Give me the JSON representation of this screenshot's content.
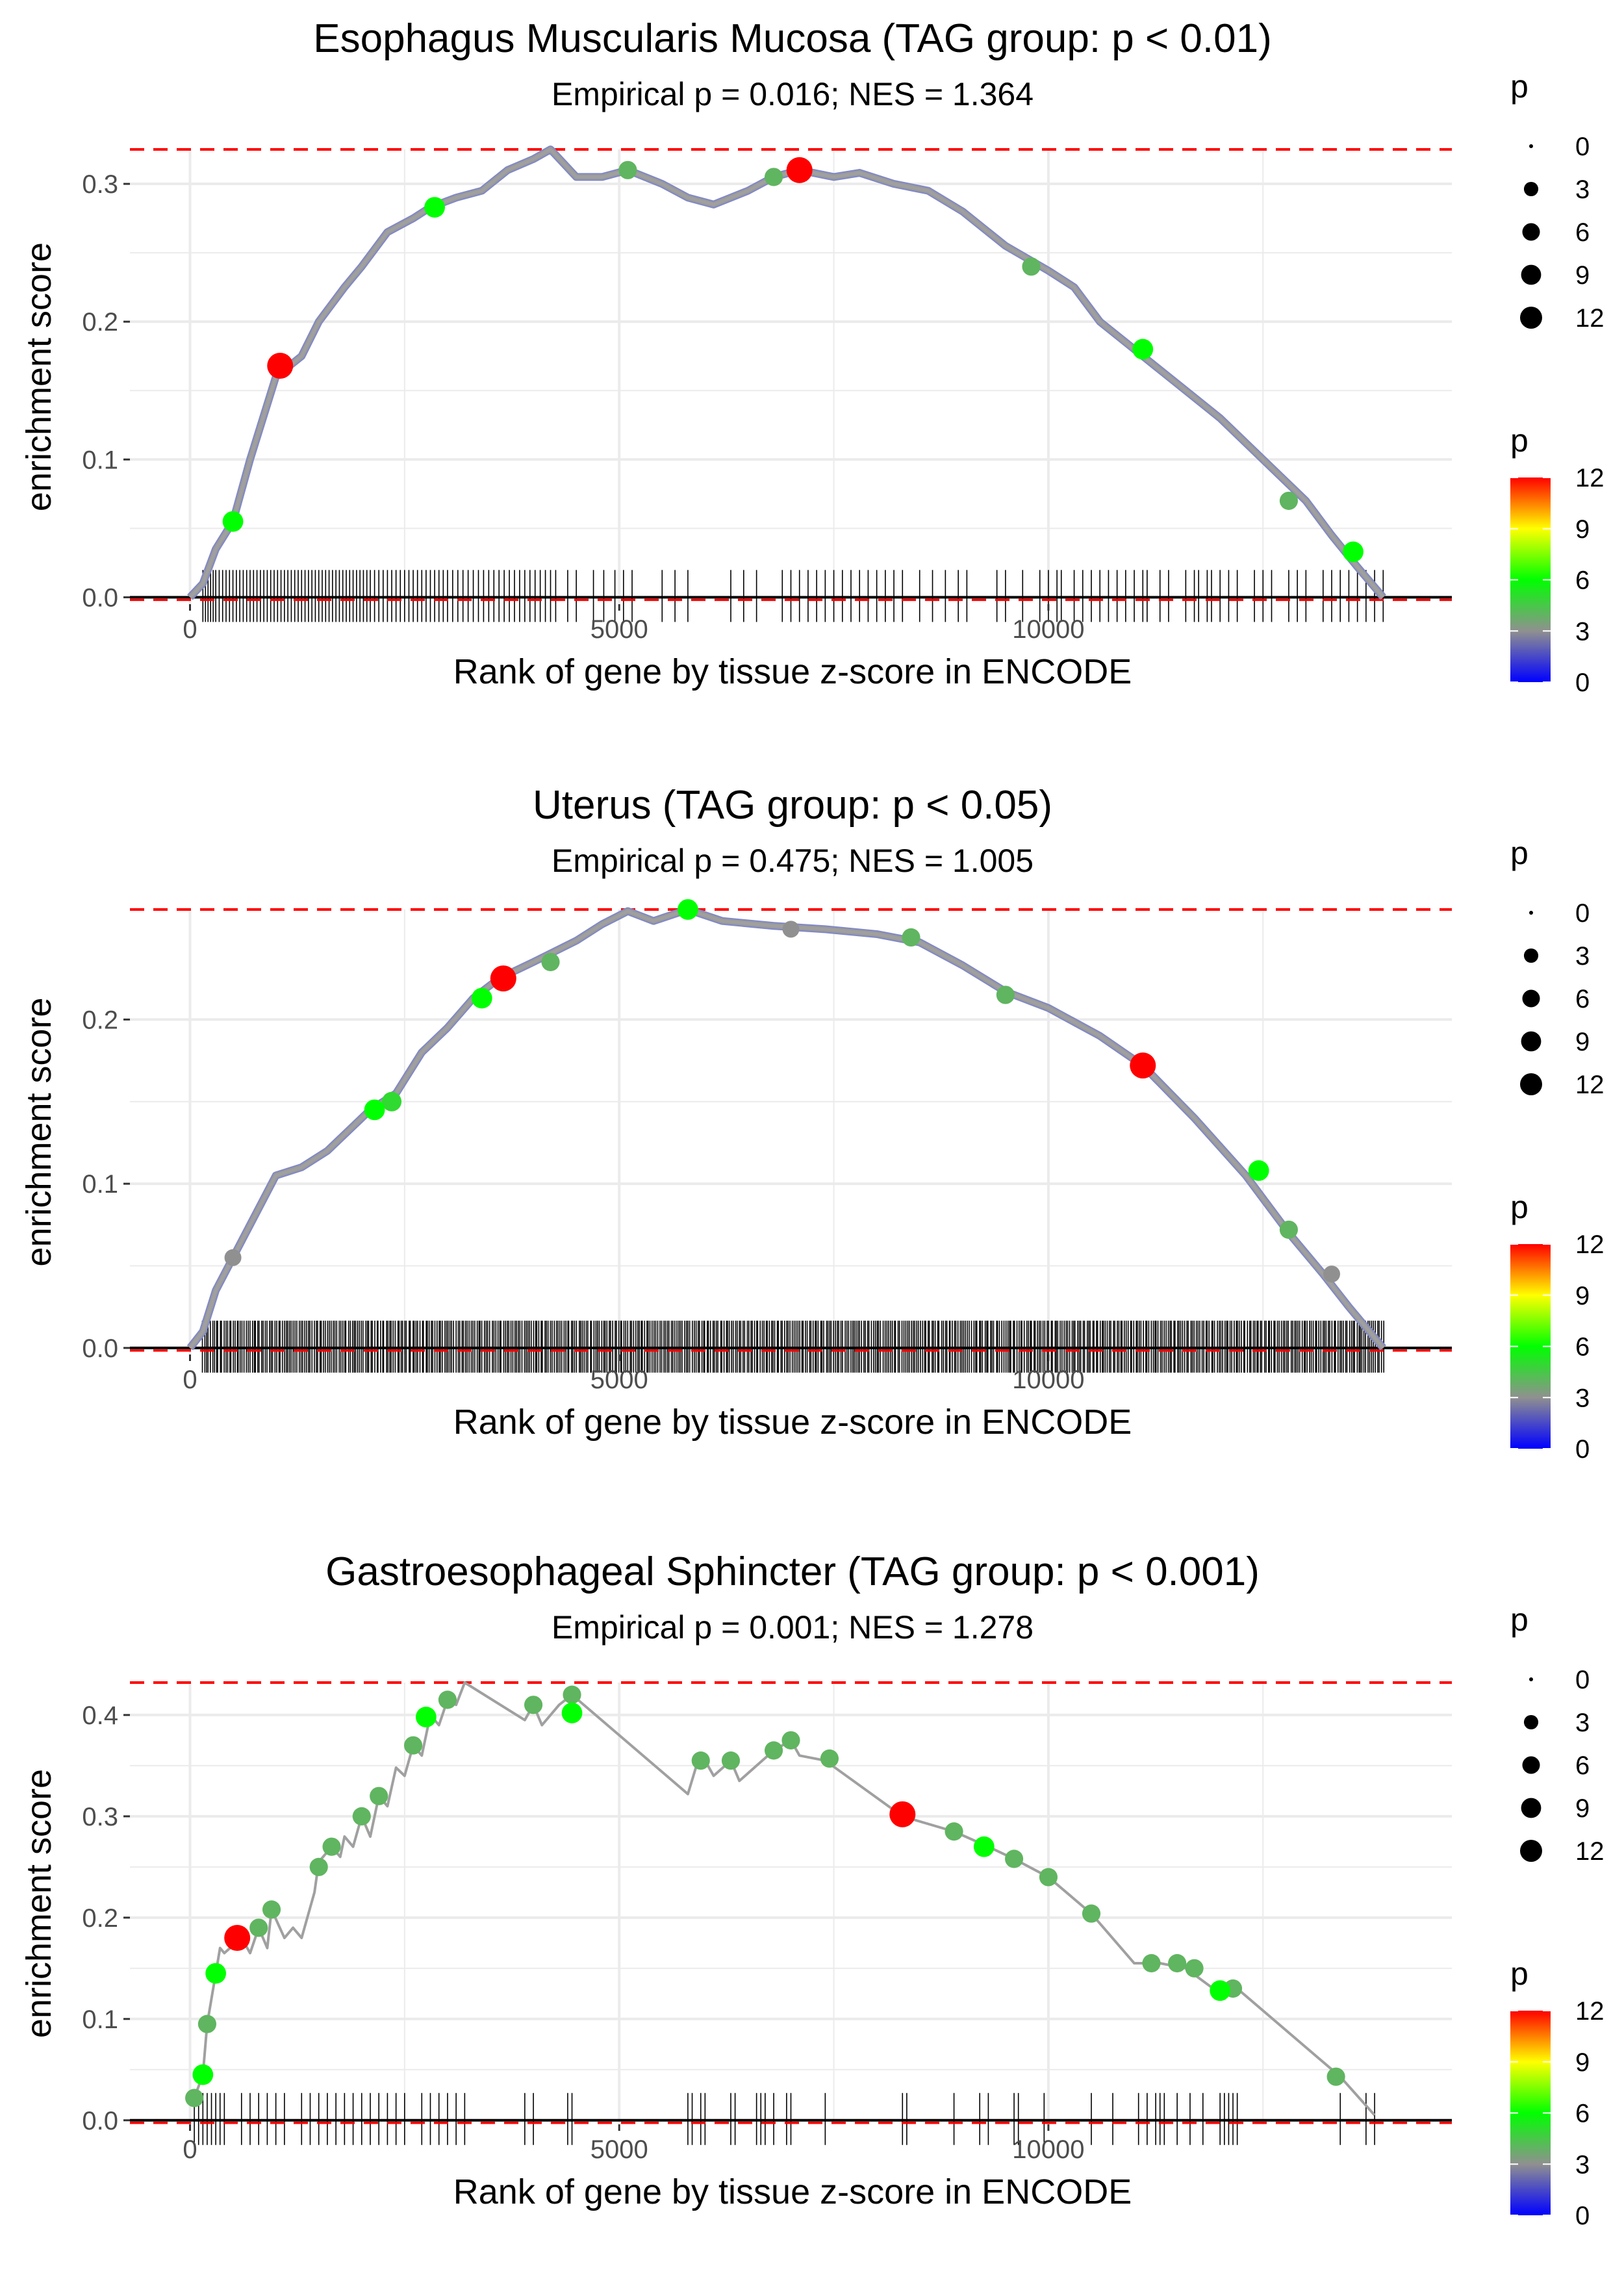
{
  "figure": {
    "x_axis_label": "Rank of gene by tissue z-score in ENCODE",
    "y_axis_label": "enrichment score",
    "size_legend": {
      "title": "p",
      "values": [
        "0",
        "3",
        "6",
        "9",
        "12"
      ]
    },
    "color_legend": {
      "title": "p",
      "ticks": [
        "12",
        "9",
        "6",
        "3",
        "0"
      ]
    },
    "colors": {
      "max_line": "#ff0000",
      "curve": "#a0a0a0",
      "grid": "#ebebeb",
      "axis": "#000000"
    }
  },
  "chart_data": [
    {
      "type": "line",
      "title": "Esophagus Muscularis Mucosa (TAG group: p < 0.01)",
      "subtitle": "Empirical p = 0.016; NES = 1.364",
      "xlabel": "Rank of gene by tissue z-score in ENCODE",
      "ylabel": "enrichment score",
      "xlim": [
        -700,
        14700
      ],
      "ylim": [
        -0.005,
        0.325
      ],
      "x_ticks": [
        0,
        5000,
        10000
      ],
      "x_tick_labels": [
        "0",
        "5000",
        "10000"
      ],
      "y_ticks": [
        0.0,
        0.1,
        0.2,
        0.3
      ],
      "y_tick_labels": [
        "0.0",
        "0.1",
        "0.2",
        "0.3"
      ],
      "max_es": 0.325,
      "curve": [
        [
          0,
          0
        ],
        [
          150,
          0.01
        ],
        [
          300,
          0.035
        ],
        [
          500,
          0.055
        ],
        [
          700,
          0.1
        ],
        [
          850,
          0.13
        ],
        [
          1000,
          0.16
        ],
        [
          1300,
          0.175
        ],
        [
          1500,
          0.2
        ],
        [
          1800,
          0.225
        ],
        [
          2000,
          0.24
        ],
        [
          2300,
          0.265
        ],
        [
          2600,
          0.275
        ],
        [
          2800,
          0.283
        ],
        [
          3100,
          0.29
        ],
        [
          3400,
          0.295
        ],
        [
          3700,
          0.31
        ],
        [
          4000,
          0.318
        ],
        [
          4200,
          0.325
        ],
        [
          4500,
          0.305
        ],
        [
          4800,
          0.305
        ],
        [
          5100,
          0.31
        ],
        [
          5500,
          0.3
        ],
        [
          5800,
          0.29
        ],
        [
          6100,
          0.285
        ],
        [
          6500,
          0.295
        ],
        [
          6800,
          0.305
        ],
        [
          7100,
          0.31
        ],
        [
          7500,
          0.305
        ],
        [
          7800,
          0.308
        ],
        [
          8200,
          0.3
        ],
        [
          8600,
          0.295
        ],
        [
          9000,
          0.28
        ],
        [
          9500,
          0.255
        ],
        [
          10000,
          0.237
        ],
        [
          10300,
          0.225
        ],
        [
          10600,
          0.2
        ],
        [
          11000,
          0.18
        ],
        [
          11500,
          0.155
        ],
        [
          12000,
          0.13
        ],
        [
          12500,
          0.1
        ],
        [
          13000,
          0.07
        ],
        [
          13300,
          0.045
        ],
        [
          13600,
          0.022
        ],
        [
          13900,
          0
        ]
      ],
      "points": [
        [
          1050,
          0.168,
          12
        ],
        [
          7100,
          0.31,
          12
        ],
        [
          500,
          0.055,
          6
        ],
        [
          2850,
          0.283,
          6
        ],
        [
          11100,
          0.18,
          6
        ],
        [
          13550,
          0.033,
          6
        ],
        [
          5100,
          0.31,
          4
        ],
        [
          6800,
          0.305,
          4
        ],
        [
          9800,
          0.24,
          4
        ],
        [
          12800,
          0.07,
          4
        ]
      ],
      "rug_positions": [
        150,
        180,
        210,
        240,
        270,
        300,
        340,
        380,
        420,
        460,
        500,
        540,
        580,
        620,
        660,
        700,
        740,
        780,
        820,
        860,
        900,
        940,
        980,
        1020,
        1060,
        1100,
        1140,
        1180,
        1220,
        1260,
        1300,
        1340,
        1380,
        1420,
        1460,
        1500,
        1540,
        1580,
        1620,
        1660,
        1700,
        1740,
        1780,
        1820,
        1860,
        1900,
        1940,
        1980,
        2020,
        2060,
        2100,
        2150,
        2200,
        2250,
        2300,
        2350,
        2400,
        2450,
        2500,
        2550,
        2600,
        2650,
        2700,
        2750,
        2800,
        2850,
        2900,
        2950,
        3000,
        3060,
        3120,
        3180,
        3240,
        3300,
        3360,
        3420,
        3480,
        3540,
        3600,
        3660,
        3720,
        3780,
        3840,
        3900,
        3960,
        4020,
        4080,
        4140,
        4200,
        4260,
        4400,
        4500,
        4700,
        4820,
        4950,
        5050,
        5150,
        5500,
        5650,
        5800,
        6300,
        6450,
        6600,
        6900,
        7000,
        7100,
        7200,
        7300,
        7400,
        7500,
        7600,
        7700,
        7800,
        7900,
        8000,
        8100,
        8200,
        8300,
        8500,
        8650,
        8800,
        8950,
        9050,
        9400,
        9500,
        9700,
        9900,
        10000,
        10100,
        10150,
        10300,
        10400,
        10500,
        10600,
        10700,
        10800,
        10900,
        11000,
        11100,
        11150,
        11300,
        11400,
        11600,
        11700,
        11750,
        11850,
        11900,
        12000,
        12100,
        12200,
        12400,
        12500,
        12600,
        12800,
        12900,
        13000,
        13200,
        13300,
        13400,
        13500,
        13600,
        13700,
        13800,
        13900
      ]
    },
    {
      "type": "line",
      "title": "Uterus (TAG group: p < 0.05)",
      "subtitle": "Empirical p = 0.475; NES = 1.005",
      "xlabel": "Rank of gene by tissue z-score in ENCODE",
      "ylabel": "enrichment score",
      "xlim": [
        -700,
        14700
      ],
      "ylim": [
        -0.004,
        0.267
      ],
      "x_ticks": [
        0,
        5000,
        10000
      ],
      "x_tick_labels": [
        "0",
        "5000",
        "10000"
      ],
      "y_ticks": [
        0.0,
        0.1,
        0.2
      ],
      "y_tick_labels": [
        "0.0",
        "0.1",
        "0.2"
      ],
      "max_es": 0.267,
      "curve": [
        [
          0,
          0
        ],
        [
          150,
          0.01
        ],
        [
          300,
          0.035
        ],
        [
          500,
          0.055
        ],
        [
          700,
          0.075
        ],
        [
          900,
          0.095
        ],
        [
          1000,
          0.105
        ],
        [
          1300,
          0.11
        ],
        [
          1600,
          0.12
        ],
        [
          1900,
          0.135
        ],
        [
          2100,
          0.145
        ],
        [
          2400,
          0.155
        ],
        [
          2700,
          0.18
        ],
        [
          3000,
          0.195
        ],
        [
          3300,
          0.213
        ],
        [
          3600,
          0.225
        ],
        [
          4000,
          0.235
        ],
        [
          4500,
          0.248
        ],
        [
          4800,
          0.258
        ],
        [
          5100,
          0.266
        ],
        [
          5400,
          0.26
        ],
        [
          5800,
          0.267
        ],
        [
          6200,
          0.26
        ],
        [
          6800,
          0.257
        ],
        [
          7400,
          0.255
        ],
        [
          8000,
          0.252
        ],
        [
          8500,
          0.247
        ],
        [
          9000,
          0.233
        ],
        [
          9500,
          0.217
        ],
        [
          10000,
          0.207
        ],
        [
          10600,
          0.19
        ],
        [
          11100,
          0.172
        ],
        [
          11700,
          0.14
        ],
        [
          12300,
          0.105
        ],
        [
          12800,
          0.07
        ],
        [
          13200,
          0.045
        ],
        [
          13500,
          0.025
        ],
        [
          13900,
          0
        ]
      ],
      "points": [
        [
          3650,
          0.225,
          12
        ],
        [
          11100,
          0.172,
          12
        ],
        [
          2150,
          0.145,
          6
        ],
        [
          2350,
          0.15,
          5
        ],
        [
          3400,
          0.213,
          6
        ],
        [
          5800,
          0.267,
          6
        ],
        [
          12450,
          0.108,
          6
        ],
        [
          8400,
          0.25,
          4
        ],
        [
          4200,
          0.235,
          4
        ],
        [
          7000,
          0.255,
          3
        ],
        [
          9500,
          0.215,
          4
        ],
        [
          12800,
          0.072,
          4
        ],
        [
          13300,
          0.045,
          3
        ],
        [
          500,
          0.055,
          3
        ]
      ],
      "rug_positions": [],
      "rug_dense_range": [
        150,
        13900
      ]
    },
    {
      "type": "line",
      "title": "Gastroesophageal Sphincter (TAG group: p < 0.001)",
      "subtitle": "Empirical p = 0.001; NES = 1.278",
      "xlabel": "Rank of gene by tissue z-score in ENCODE",
      "ylabel": "enrichment score",
      "xlim": [
        -700,
        14700
      ],
      "ylim": [
        -0.004,
        0.432
      ],
      "x_ticks": [
        0,
        5000,
        10000
      ],
      "x_tick_labels": [
        "0",
        "5000",
        "10000"
      ],
      "y_ticks": [
        0.0,
        0.1,
        0.2,
        0.3,
        0.4
      ],
      "y_tick_labels": [
        "0.0",
        "0.1",
        "0.2",
        "0.3",
        "0.4"
      ],
      "max_es": 0.432,
      "curve": [
        [
          50,
          0.022
        ],
        [
          150,
          0.045
        ],
        [
          200,
          0.095
        ],
        [
          250,
          0.12
        ],
        [
          300,
          0.145
        ],
        [
          350,
          0.17
        ],
        [
          400,
          0.165
        ],
        [
          600,
          0.18
        ],
        [
          700,
          0.165
        ],
        [
          800,
          0.19
        ],
        [
          900,
          0.17
        ],
        [
          950,
          0.208
        ],
        [
          1100,
          0.18
        ],
        [
          1200,
          0.19
        ],
        [
          1300,
          0.18
        ],
        [
          1400,
          0.21
        ],
        [
          1450,
          0.225
        ],
        [
          1500,
          0.255
        ],
        [
          1650,
          0.27
        ],
        [
          1750,
          0.26
        ],
        [
          1800,
          0.28
        ],
        [
          1900,
          0.27
        ],
        [
          2000,
          0.3
        ],
        [
          2100,
          0.28
        ],
        [
          2200,
          0.32
        ],
        [
          2300,
          0.31
        ],
        [
          2400,
          0.348
        ],
        [
          2500,
          0.34
        ],
        [
          2600,
          0.37
        ],
        [
          2700,
          0.36
        ],
        [
          2800,
          0.4
        ],
        [
          2900,
          0.39
        ],
        [
          3000,
          0.415
        ],
        [
          3100,
          0.41
        ],
        [
          3200,
          0.432
        ],
        [
          3900,
          0.395
        ],
        [
          4000,
          0.41
        ],
        [
          4100,
          0.39
        ],
        [
          4300,
          0.41
        ],
        [
          4450,
          0.42
        ],
        [
          5800,
          0.322
        ],
        [
          5900,
          0.35
        ],
        [
          6000,
          0.355
        ],
        [
          6100,
          0.34
        ],
        [
          6300,
          0.355
        ],
        [
          6400,
          0.335
        ],
        [
          6600,
          0.35
        ],
        [
          6800,
          0.365
        ],
        [
          7000,
          0.375
        ],
        [
          7100,
          0.36
        ],
        [
          7400,
          0.355
        ],
        [
          8300,
          0.3
        ],
        [
          8900,
          0.285
        ],
        [
          9300,
          0.27
        ],
        [
          9600,
          0.258
        ],
        [
          10000,
          0.24
        ],
        [
          10500,
          0.204
        ],
        [
          11000,
          0.155
        ],
        [
          11300,
          0.155
        ],
        [
          11600,
          0.15
        ],
        [
          12000,
          0.125
        ],
        [
          12200,
          0.13
        ],
        [
          13400,
          0.043
        ],
        [
          13800,
          0.005
        ]
      ],
      "points": [
        [
          550,
          0.18,
          12
        ],
        [
          8300,
          0.302,
          12
        ],
        [
          150,
          0.045,
          6
        ],
        [
          300,
          0.145,
          6
        ],
        [
          2750,
          0.398,
          6
        ],
        [
          4450,
          0.402,
          6
        ],
        [
          9250,
          0.27,
          6
        ],
        [
          12000,
          0.128,
          6
        ],
        [
          50,
          0.022,
          4
        ],
        [
          200,
          0.095,
          4
        ],
        [
          800,
          0.19,
          4
        ],
        [
          950,
          0.208,
          4
        ],
        [
          1500,
          0.25,
          4
        ],
        [
          1650,
          0.27,
          4
        ],
        [
          2000,
          0.3,
          4
        ],
        [
          2200,
          0.32,
          4
        ],
        [
          2600,
          0.37,
          4
        ],
        [
          3000,
          0.415,
          4
        ],
        [
          4000,
          0.41,
          4
        ],
        [
          4450,
          0.42,
          4
        ],
        [
          5950,
          0.355,
          4
        ],
        [
          6300,
          0.355,
          4
        ],
        [
          6800,
          0.365,
          4
        ],
        [
          7000,
          0.375,
          4
        ],
        [
          7450,
          0.357,
          4
        ],
        [
          8900,
          0.285,
          4
        ],
        [
          9600,
          0.258,
          4
        ],
        [
          10000,
          0.24,
          4
        ],
        [
          10500,
          0.204,
          4
        ],
        [
          11200,
          0.155,
          4
        ],
        [
          11500,
          0.155,
          4
        ],
        [
          11700,
          0.15,
          4
        ],
        [
          12150,
          0.13,
          4
        ],
        [
          13350,
          0.043,
          4
        ]
      ],
      "rug_positions": [
        50,
        100,
        150,
        200,
        250,
        300,
        350,
        400,
        600,
        700,
        800,
        900,
        1000,
        1100,
        1300,
        1400,
        1500,
        1600,
        1700,
        1800,
        1900,
        2000,
        2100,
        2200,
        2300,
        2400,
        2500,
        2700,
        2800,
        2900,
        3000,
        3100,
        3200,
        3900,
        4000,
        4400,
        4450,
        5800,
        5850,
        5950,
        6000,
        6300,
        6350,
        6600,
        6650,
        6700,
        6800,
        6950,
        7000,
        7400,
        8300,
        8350,
        8900,
        9200,
        9300,
        9600,
        9650,
        9950,
        10500,
        10750,
        11050,
        11150,
        11250,
        11300,
        11350,
        11500,
        11650,
        11800,
        12000,
        12050,
        12100,
        12150,
        12200,
        13400,
        13700,
        13800
      ]
    }
  ]
}
